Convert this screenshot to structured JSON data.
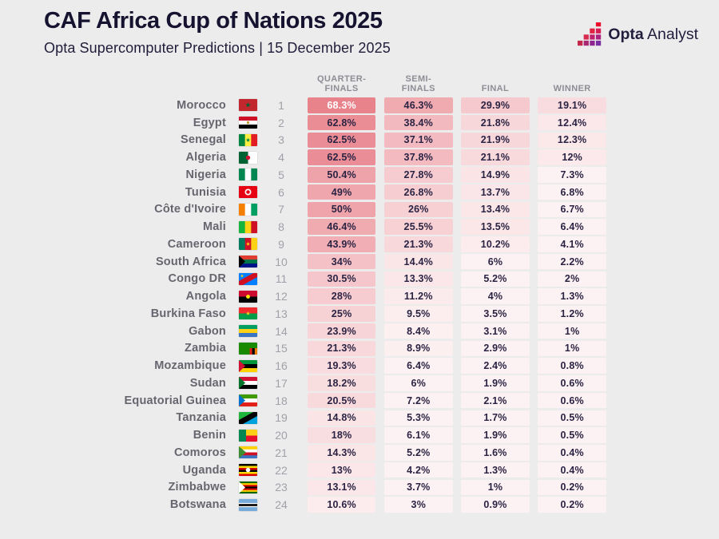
{
  "header": {
    "title": "CAF Africa Cup of Nations 2025",
    "subtitle": "Opta Supercomputer Predictions | 15 December 2025",
    "logo": {
      "text_bold": "Opta",
      "text_regular": "Analyst",
      "mark_colors": [
        "#C3284C",
        "#D62A4E",
        "#A92871",
        "#E02344",
        "#C01F6E",
        "#8F2590",
        "#ED0E2C",
        "#D61E55",
        "#AD2280",
        "#7A2FA5"
      ]
    }
  },
  "table": {
    "columns": [
      "QUARTER-\nFINALS",
      "SEMI-\nFINALS",
      "FINAL",
      "WINNER"
    ]
  },
  "colors": {
    "background": "#ECECEC",
    "cell_base": "#DE4957",
    "cell_min_alpha": 0.07,
    "cell_text": "#2A2343",
    "cell_text_light": "#FFFFFF",
    "white_text_min": 65
  },
  "chart_data": {
    "type": "table",
    "title": "CAF Africa Cup of Nations 2025",
    "subtitle": "Opta Supercomputer Predictions | 15 December 2025",
    "columns": [
      "Quarter-finals",
      "Semi-finals",
      "Final",
      "Winner"
    ],
    "unit": "%",
    "rows": [
      {
        "rank": 1,
        "team": "Morocco",
        "values": [
          68.3,
          46.3,
          29.9,
          19.1
        ],
        "flag": {
          "s": [
            [
              "#C1272D"
            ]
          ],
          "e": [
            {
              "t": "star",
              "c": "#006233",
              "r": 3.4
            }
          ]
        }
      },
      {
        "rank": 2,
        "team": "Egypt",
        "values": [
          62.8,
          38.4,
          21.8,
          12.4
        ],
        "flag": {
          "s": [
            [
              "#CE1126"
            ],
            [
              "#FFFFFF"
            ],
            [
              "#000000"
            ]
          ],
          "e": [
            {
              "t": "dot",
              "c": "#C09A36",
              "r": 1.7
            }
          ]
        }
      },
      {
        "rank": 3,
        "team": "Senegal",
        "values": [
          62.5,
          37.1,
          21.9,
          12.3
        ],
        "flag": {
          "d": "v",
          "s": [
            [
              "#00853F"
            ],
            [
              "#FDEF42"
            ],
            [
              "#E31B23"
            ]
          ],
          "e": [
            {
              "t": "star",
              "c": "#00853F",
              "r": 2.8
            }
          ]
        }
      },
      {
        "rank": 4,
        "team": "Algeria",
        "values": [
          62.5,
          37.8,
          21.1,
          12
        ],
        "flag": {
          "d": "v",
          "s": [
            [
              "#006233"
            ],
            [
              "#FFFFFF"
            ]
          ],
          "e": [
            {
              "t": "dot",
              "c": "#D21034",
              "r": 2.7
            }
          ]
        }
      },
      {
        "rank": 5,
        "team": "Nigeria",
        "values": [
          50.4,
          27.8,
          14.9,
          7.3
        ],
        "flag": {
          "d": "v",
          "s": [
            [
              "#008751"
            ],
            [
              "#FFFFFF"
            ],
            [
              "#008751"
            ]
          ]
        }
      },
      {
        "rank": 6,
        "team": "Tunisia",
        "values": [
          49,
          26.8,
          13.7,
          6.8
        ],
        "flag": {
          "s": [
            [
              "#E70013"
            ]
          ],
          "e": [
            {
              "t": "circle",
              "c": "#FFFFFF",
              "r": 4
            },
            {
              "t": "dot",
              "c": "#E70013",
              "r": 2.3
            }
          ]
        }
      },
      {
        "rank": 7,
        "team": "Côte d'Ivoire",
        "values": [
          50,
          26,
          13.4,
          6.7
        ],
        "flag": {
          "d": "v",
          "s": [
            [
              "#F77F00"
            ],
            [
              "#FFFFFF"
            ],
            [
              "#009E60"
            ]
          ]
        }
      },
      {
        "rank": 8,
        "team": "Mali",
        "values": [
          46.4,
          25.5,
          13.5,
          6.4
        ],
        "flag": {
          "d": "v",
          "s": [
            [
              "#14B53A"
            ],
            [
              "#FCD116"
            ],
            [
              "#CE1126"
            ]
          ]
        }
      },
      {
        "rank": 9,
        "team": "Cameroon",
        "values": [
          43.9,
          21.3,
          10.2,
          4.1
        ],
        "flag": {
          "d": "v",
          "s": [
            [
              "#007A5E"
            ],
            [
              "#CE1126"
            ],
            [
              "#FCD116"
            ]
          ],
          "e": [
            {
              "t": "star",
              "c": "#FCD116",
              "r": 2.6
            }
          ]
        }
      },
      {
        "rank": 10,
        "team": "South Africa",
        "values": [
          34,
          14.4,
          6,
          2.2
        ],
        "flag": {
          "s": [
            [
              "#E03C31"
            ],
            [
              "#007749"
            ],
            [
              "#001489"
            ]
          ],
          "e": [
            {
              "t": "tri",
              "c": "#000000",
              "w": 8
            }
          ]
        }
      },
      {
        "rank": 11,
        "team": "Congo DR",
        "values": [
          30.5,
          13.3,
          5.2,
          2
        ],
        "flag": {
          "s": [
            [
              "#007FFF"
            ]
          ],
          "e": [
            {
              "t": "diag",
              "c": "#CE1021"
            },
            {
              "t": "star",
              "c": "#F7D618",
              "x": 4,
              "y": 3.5,
              "r": 2.2
            }
          ]
        }
      },
      {
        "rank": 12,
        "team": "Angola",
        "values": [
          28,
          11.2,
          4,
          1.3
        ],
        "flag": {
          "s": [
            [
              "#CC092F"
            ],
            [
              "#000000"
            ]
          ],
          "e": [
            {
              "t": "dot",
              "c": "#FFEC00",
              "r": 2.4
            }
          ]
        }
      },
      {
        "rank": 13,
        "team": "Burkina Faso",
        "values": [
          25,
          9.5,
          3.5,
          1.2
        ],
        "flag": {
          "s": [
            [
              "#EF2B2D"
            ],
            [
              "#009E49"
            ]
          ],
          "e": [
            {
              "t": "star",
              "c": "#FCD116",
              "r": 2.6
            }
          ]
        }
      },
      {
        "rank": 14,
        "team": "Gabon",
        "values": [
          23.9,
          8.4,
          3.1,
          1
        ],
        "flag": {
          "s": [
            [
              "#009E60"
            ],
            [
              "#FCD116"
            ],
            [
              "#3A75C4"
            ]
          ]
        }
      },
      {
        "rank": 15,
        "team": "Zambia",
        "values": [
          21.3,
          8.9,
          2.9,
          1
        ],
        "flag": {
          "s": [
            [
              "#198A00"
            ]
          ],
          "e": [
            {
              "t": "bars",
              "cs": [
                "#DE2010",
                "#000000",
                "#EF7D00"
              ]
            }
          ]
        }
      },
      {
        "rank": 16,
        "team": "Mozambique",
        "values": [
          19.3,
          6.4,
          2.4,
          0.8
        ],
        "flag": {
          "s": [
            [
              "#009639"
            ],
            [
              "#000000"
            ],
            [
              "#FFD100"
            ]
          ],
          "e": [
            {
              "t": "tri",
              "c": "#D21034",
              "w": 8
            }
          ]
        }
      },
      {
        "rank": 17,
        "team": "Sudan",
        "values": [
          18.2,
          6,
          1.9,
          0.6
        ],
        "flag": {
          "s": [
            [
              "#D21034"
            ],
            [
              "#FFFFFF"
            ],
            [
              "#000000"
            ]
          ],
          "e": [
            {
              "t": "tri",
              "c": "#007229",
              "w": 8
            }
          ]
        }
      },
      {
        "rank": 18,
        "team": "Equatorial Guinea",
        "values": [
          20.5,
          7.2,
          2.1,
          0.6
        ],
        "flag": {
          "s": [
            [
              "#3E9A00"
            ],
            [
              "#FFFFFF"
            ],
            [
              "#E32118"
            ]
          ],
          "e": [
            {
              "t": "tri",
              "c": "#0073CE",
              "w": 8
            }
          ]
        }
      },
      {
        "rank": 19,
        "team": "Tanzania",
        "values": [
          14.8,
          5.3,
          1.7,
          0.5
        ],
        "flag": {
          "s": [
            [
              "#1EB53A"
            ]
          ],
          "e": [
            {
              "t": "corner",
              "c": "#00A3DD"
            },
            {
              "t": "diag",
              "c": "#000000"
            }
          ]
        }
      },
      {
        "rank": 20,
        "team": "Benin",
        "values": [
          18,
          6.1,
          1.9,
          0.5
        ],
        "flag": {
          "s": [
            [
              "#FCD116"
            ],
            [
              "#E8112D"
            ]
          ],
          "e": [
            {
              "t": "leftrect",
              "c": "#008751"
            }
          ]
        }
      },
      {
        "rank": 21,
        "team": "Comoros",
        "values": [
          14.3,
          5.2,
          1.6,
          0.4
        ],
        "flag": {
          "s": [
            [
              "#FFD100"
            ],
            [
              "#FFFFFF"
            ],
            [
              "#CE1126"
            ],
            [
              "#3A75C4"
            ]
          ],
          "e": [
            {
              "t": "tri",
              "c": "#3D8E33",
              "w": 9
            }
          ]
        }
      },
      {
        "rank": 22,
        "team": "Uganda",
        "values": [
          13,
          4.2,
          1.3,
          0.4
        ],
        "flag": {
          "s": [
            [
              "#000000"
            ],
            [
              "#FCDC04"
            ],
            [
              "#D90000"
            ],
            [
              "#000000"
            ],
            [
              "#FCDC04"
            ],
            [
              "#D90000"
            ]
          ],
          "e": [
            {
              "t": "circle",
              "c": "#FFFFFF",
              "r": 2.8
            }
          ]
        }
      },
      {
        "rank": 23,
        "team": "Zimbabwe",
        "values": [
          13.1,
          3.7,
          1,
          0.2
        ],
        "flag": {
          "s": [
            [
              "#006400"
            ],
            [
              "#FFD200"
            ],
            [
              "#D40000"
            ],
            [
              "#000000"
            ],
            [
              "#D40000"
            ],
            [
              "#FFD200"
            ],
            [
              "#006400"
            ]
          ],
          "e": [
            {
              "t": "tri",
              "c": "#FFFFFF",
              "w": 8
            }
          ]
        }
      },
      {
        "rank": 24,
        "team": "Botswana",
        "values": [
          10.6,
          3,
          0.9,
          0.2
        ],
        "flag": {
          "s": [
            [
              "#75AADB",
              3
            ],
            [
              "#FFFFFF",
              0.8
            ],
            [
              "#000000",
              1.6
            ],
            [
              "#FFFFFF",
              0.8
            ],
            [
              "#75AADB",
              3
            ]
          ]
        }
      }
    ]
  }
}
